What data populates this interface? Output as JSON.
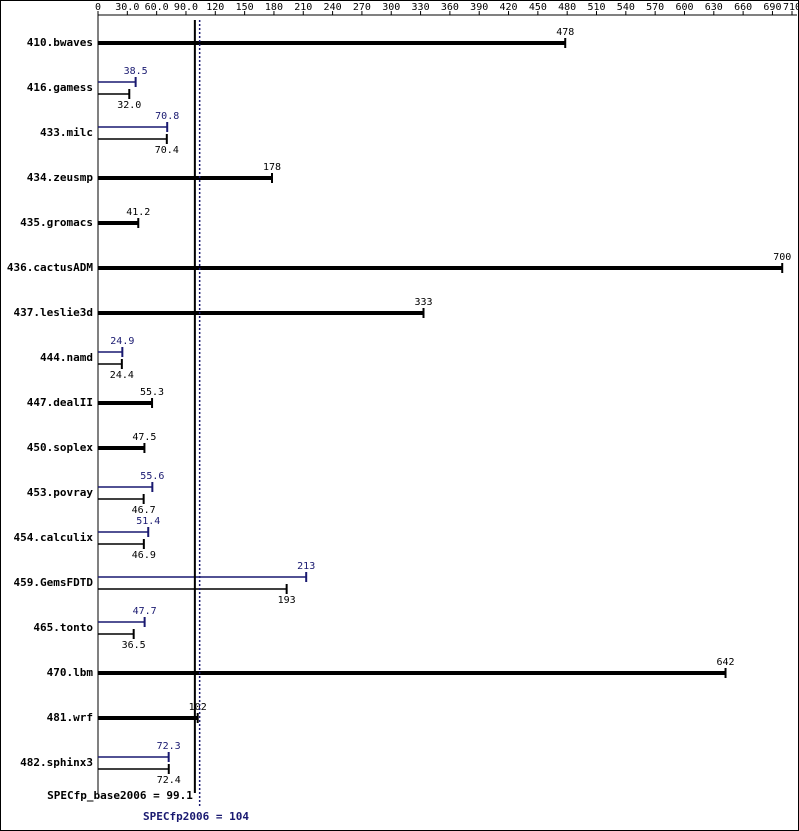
{
  "chart_data": {
    "type": "spec-bar",
    "categories": [
      "410.bwaves",
      "416.gamess",
      "433.milc",
      "434.zeusmp",
      "435.gromacs",
      "436.cactusADM",
      "437.leslie3d",
      "444.namd",
      "447.dealII",
      "450.soplex",
      "453.povray",
      "454.calculix",
      "459.GemsFDTD",
      "465.tonto",
      "470.lbm",
      "481.wrf",
      "482.sphinx3"
    ],
    "series": [
      {
        "color": "#191970",
        "values": [
          null,
          38.5,
          70.8,
          null,
          null,
          null,
          null,
          24.9,
          null,
          null,
          55.6,
          51.4,
          213,
          47.7,
          null,
          null,
          72.3
        ]
      },
      {
        "color": "#000000",
        "values": [
          478,
          32.0,
          70.4,
          178,
          41.2,
          700,
          333,
          24.4,
          55.3,
          47.5,
          46.7,
          46.9,
          193,
          36.5,
          642,
          102,
          72.4
        ],
        "value_labels": [
          null,
          "32.0",
          null,
          null,
          null,
          null,
          null,
          null,
          null,
          null,
          null,
          null,
          null,
          null,
          null,
          null,
          null
        ]
      }
    ],
    "xlim": [
      0,
      710
    ],
    "xticks": [
      0,
      {
        "value": 30,
        "label": "30.0"
      },
      {
        "value": 60,
        "label": "60.0"
      },
      {
        "value": 90,
        "label": "90.0"
      },
      120,
      150,
      180,
      210,
      240,
      270,
      300,
      330,
      360,
      390,
      420,
      450,
      480,
      510,
      540,
      570,
      600,
      630,
      660,
      690,
      710
    ],
    "summaries": [
      {
        "label": "SPECfp_base2006 = 99.1",
        "value": 99.1,
        "color": "#000000"
      },
      {
        "label": "SPECfp2006 = 104",
        "value": 104,
        "color": "#191970"
      }
    ]
  }
}
